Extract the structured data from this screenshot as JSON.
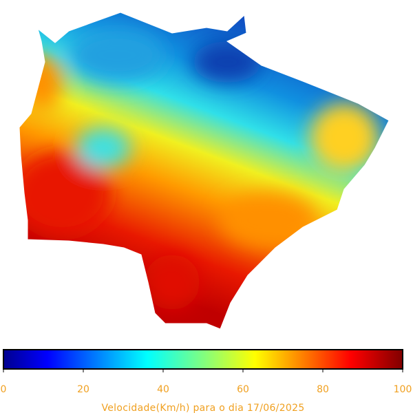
{
  "colorbar": {
    "range": [
      0,
      100
    ],
    "ticks": [
      0,
      20,
      40,
      60,
      80,
      100
    ],
    "label": "Velocidade(Km/h) para o dia 17/06/2025",
    "colormap": "jet"
  }
}
